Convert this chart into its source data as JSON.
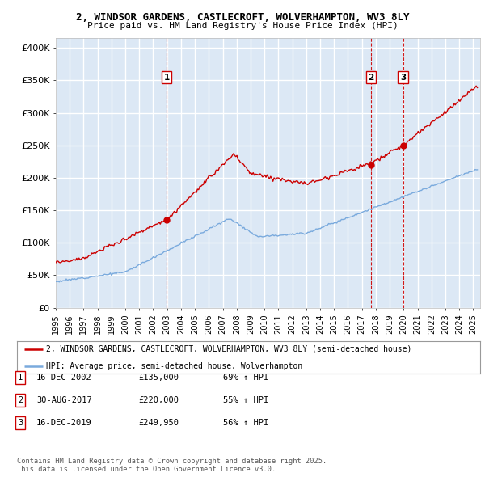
{
  "title_line1": "2, WINDSOR GARDENS, CASTLECROFT, WOLVERHAMPTON, WV3 8LY",
  "title_line2": "Price paid vs. HM Land Registry's House Price Index (HPI)",
  "ylabel_ticks": [
    "£0",
    "£50K",
    "£100K",
    "£150K",
    "£200K",
    "£250K",
    "£300K",
    "£350K",
    "£400K"
  ],
  "ytick_values": [
    0,
    50000,
    100000,
    150000,
    200000,
    250000,
    300000,
    350000,
    400000
  ],
  "ylim": [
    0,
    415000
  ],
  "xlim_start": 1995.0,
  "xlim_end": 2025.5,
  "purchase_color": "#cc0000",
  "hpi_color": "#7aaadd",
  "vline_color": "#cc0000",
  "background_color": "#dce8f5",
  "grid_color": "#ffffff",
  "purchases": [
    {
      "date_num": 2002.96,
      "price": 135000,
      "label": "1"
    },
    {
      "date_num": 2017.66,
      "price": 220000,
      "label": "2"
    },
    {
      "date_num": 2019.96,
      "price": 249950,
      "label": "3"
    }
  ],
  "legend_line1": "2, WINDSOR GARDENS, CASTLECROFT, WOLVERHAMPTON, WV3 8LY (semi-detached house)",
  "legend_line2": "HPI: Average price, semi-detached house, Wolverhampton",
  "table_entries": [
    {
      "num": "1",
      "date": "16-DEC-2002",
      "price": "£135,000",
      "hpi": "69% ↑ HPI"
    },
    {
      "num": "2",
      "date": "30-AUG-2017",
      "price": "£220,000",
      "hpi": "55% ↑ HPI"
    },
    {
      "num": "3",
      "date": "16-DEC-2019",
      "price": "£249,950",
      "hpi": "56% ↑ HPI"
    }
  ],
  "footnote": "Contains HM Land Registry data © Crown copyright and database right 2025.\nThis data is licensed under the Open Government Licence v3.0."
}
